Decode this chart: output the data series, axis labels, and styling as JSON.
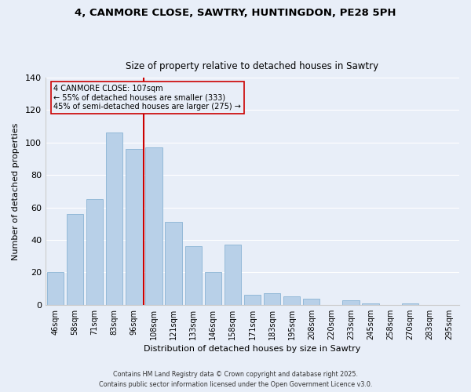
{
  "title1": "4, CANMORE CLOSE, SAWTRY, HUNTINGDON, PE28 5PH",
  "title2": "Size of property relative to detached houses in Sawtry",
  "xlabel": "Distribution of detached houses by size in Sawtry",
  "ylabel": "Number of detached properties",
  "categories": [
    "46sqm",
    "58sqm",
    "71sqm",
    "83sqm",
    "96sqm",
    "108sqm",
    "121sqm",
    "133sqm",
    "146sqm",
    "158sqm",
    "171sqm",
    "183sqm",
    "195sqm",
    "208sqm",
    "220sqm",
    "233sqm",
    "245sqm",
    "258sqm",
    "270sqm",
    "283sqm",
    "295sqm"
  ],
  "values": [
    20,
    56,
    65,
    106,
    96,
    97,
    51,
    36,
    20,
    37,
    6,
    7,
    5,
    4,
    0,
    3,
    1,
    0,
    1,
    0,
    0
  ],
  "bar_color": "#b8d0e8",
  "bar_edge_color": "#8ab4d4",
  "highlight_index": 5,
  "highlight_line_color": "#cc0000",
  "ylim": [
    0,
    140
  ],
  "yticks": [
    0,
    20,
    40,
    60,
    80,
    100,
    120,
    140
  ],
  "annotation_title": "4 CANMORE CLOSE: 107sqm",
  "annotation_line1": "← 55% of detached houses are smaller (333)",
  "annotation_line2": "45% of semi-detached houses are larger (275) →",
  "annotation_box_edge": "#cc0000",
  "footer1": "Contains HM Land Registry data © Crown copyright and database right 2025.",
  "footer2": "Contains public sector information licensed under the Open Government Licence v3.0.",
  "background_color": "#e8eef8",
  "grid_color": "#ffffff"
}
